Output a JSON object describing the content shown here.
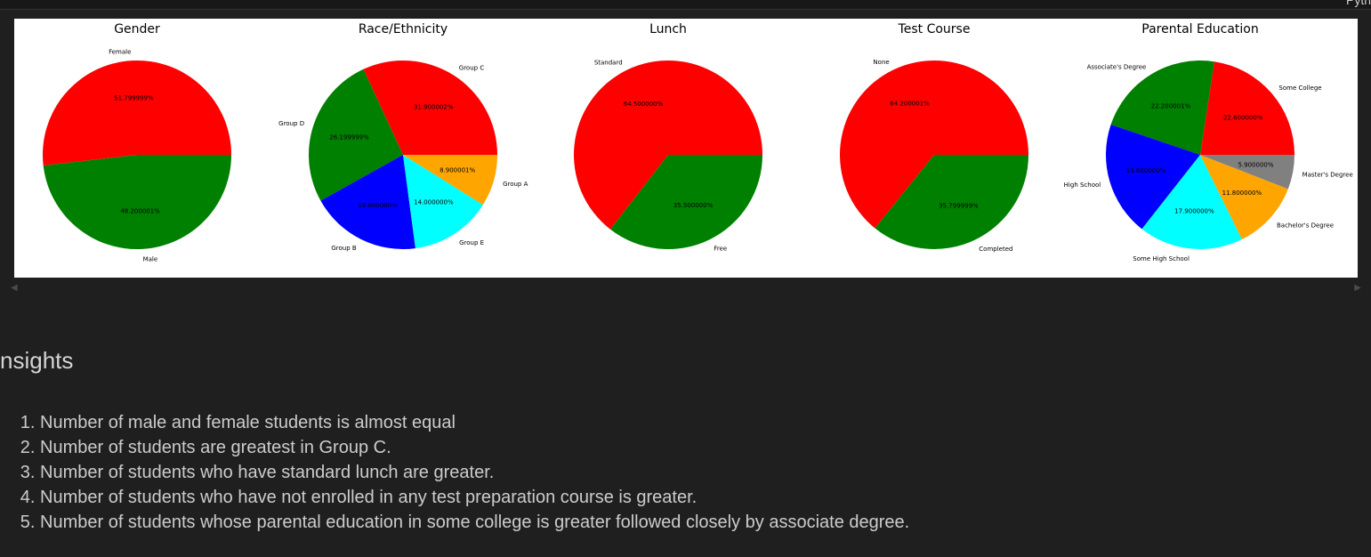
{
  "app": {
    "topbar_label": "Pyth"
  },
  "chart_data": [
    {
      "type": "pie",
      "title": "Gender",
      "categories": [
        "Female",
        "Male"
      ],
      "values": [
        51.799999,
        48.200001
      ],
      "value_labels": [
        "51.799999%",
        "48.200001%"
      ],
      "colors": [
        "#ff0000",
        "#008000"
      ]
    },
    {
      "type": "pie",
      "title": "Race/Ethnicity",
      "categories": [
        "Group C",
        "Group D",
        "Group B",
        "Group E",
        "Group A"
      ],
      "values": [
        31.900002,
        26.199999,
        19.0,
        14.0,
        8.900001
      ],
      "value_labels": [
        "31.900002%",
        "26.199999%",
        "19.000000%",
        "14.000000%",
        "8.900001%"
      ],
      "colors": [
        "#ff0000",
        "#008000",
        "#0000ff",
        "#00ffff",
        "#ffa500"
      ]
    },
    {
      "type": "pie",
      "title": "Lunch",
      "categories": [
        "Standard",
        "Free"
      ],
      "values": [
        64.5,
        35.5
      ],
      "value_labels": [
        "64.500000%",
        "35.500000%"
      ],
      "colors": [
        "#ff0000",
        "#008000"
      ]
    },
    {
      "type": "pie",
      "title": "Test Course",
      "categories": [
        "None",
        "Completed"
      ],
      "values": [
        64.200001,
        35.799999
      ],
      "value_labels": [
        "64.200001%",
        "35.799999%"
      ],
      "colors": [
        "#ff0000",
        "#008000"
      ]
    },
    {
      "type": "pie",
      "title": "Parental Education",
      "categories": [
        "Some College",
        "Associate's Degree",
        "High School",
        "Some High School",
        "Bachelor's Degree",
        "Master's Degree"
      ],
      "values": [
        22.6,
        22.200001,
        19.6,
        17.9,
        11.8,
        5.9
      ],
      "value_labels": [
        "22.600000%",
        "22.200001%",
        "19.600000%",
        "17.900000%",
        "11.800000%",
        "5.900000%"
      ],
      "colors": [
        "#ff0000",
        "#008000",
        "#0000ff",
        "#00ffff",
        "#ffa500",
        "#808080"
      ]
    }
  ],
  "insights": {
    "heading": "nsights",
    "items": [
      "Number of male and female students is almost equal",
      "Number of students are greatest in Group C.",
      "Number of students who have standard lunch are greater.",
      "Number of students who have not enrolled in any test preparation course is greater.",
      "Number of students whose parental education in some college is greater followed closely by associate degree."
    ]
  }
}
